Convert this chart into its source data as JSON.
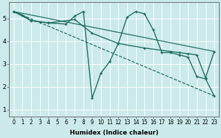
{
  "xlabel": "Humidex (Indice chaleur)",
  "bg_color": "#cceaea",
  "grid_color": "#ffffff",
  "line_color": "#1a6b5a",
  "xlim": [
    -0.5,
    23.5
  ],
  "ylim": [
    0.7,
    5.7
  ],
  "yticks": [
    1,
    2,
    3,
    4,
    5
  ],
  "xticks": [
    0,
    1,
    2,
    3,
    4,
    5,
    6,
    7,
    8,
    9,
    10,
    11,
    12,
    13,
    14,
    15,
    16,
    17,
    18,
    19,
    20,
    21,
    22,
    23
  ],
  "lines": [
    {
      "x": [
        0,
        1,
        2,
        3,
        4,
        6,
        7,
        8,
        9,
        10,
        11,
        12,
        13,
        14,
        15,
        16,
        17,
        18,
        19,
        20,
        21,
        22,
        23
      ],
      "y": [
        5.3,
        5.15,
        4.9,
        4.85,
        4.8,
        4.75,
        5.1,
        5.3,
        1.5,
        2.6,
        3.1,
        3.9,
        5.05,
        5.3,
        5.2,
        4.5,
        3.5,
        3.5,
        3.4,
        3.3,
        2.45,
        2.35,
        1.6
      ],
      "marker": "+",
      "linestyle": "-",
      "lw": 1.0
    },
    {
      "x": [
        0,
        2,
        4,
        7,
        9,
        12,
        15,
        18,
        19,
        20,
        21,
        22,
        23
      ],
      "y": [
        5.3,
        4.9,
        4.8,
        4.95,
        4.35,
        3.9,
        3.7,
        3.55,
        3.5,
        3.45,
        3.4,
        2.4,
        3.55
      ],
      "marker": "+",
      "linestyle": "-",
      "lw": 1.0
    },
    {
      "x": [
        0,
        23
      ],
      "y": [
        5.3,
        1.6
      ],
      "marker": null,
      "linestyle": "--",
      "lw": 0.9
    },
    {
      "x": [
        0,
        23
      ],
      "y": [
        5.3,
        3.55
      ],
      "marker": null,
      "linestyle": "-",
      "lw": 0.9
    }
  ]
}
